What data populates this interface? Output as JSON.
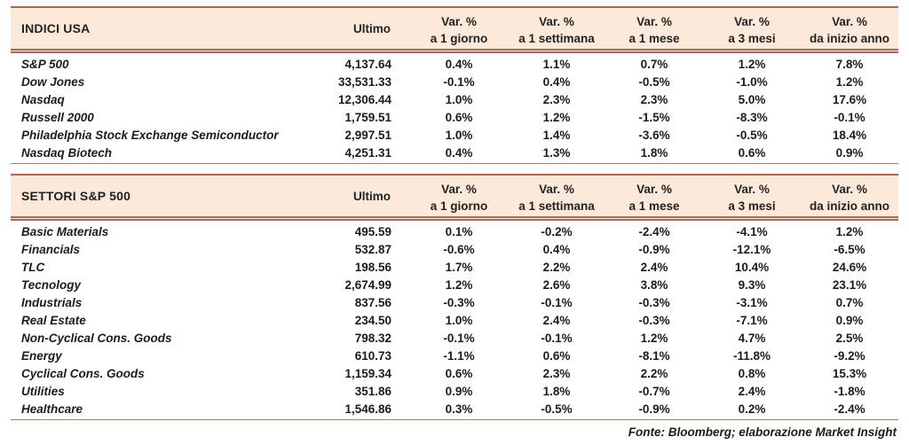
{
  "colors": {
    "header_bg": "#fce9da",
    "rule_dark": "#a9685c",
    "rule_light": "#c0705f",
    "text": "#1c1c1c"
  },
  "columns": {
    "ultimo": "Ultimo",
    "var_top": "Var. %",
    "var_subs": [
      "a 1 giorno",
      "a 1 settimana",
      "a 1 mese",
      "a 3 mesi",
      "da inizio anno"
    ]
  },
  "tables": [
    {
      "title": "INDICI USA",
      "rows": [
        {
          "name": "S&P 500",
          "ultimo": "4,137.64",
          "vars": [
            "0.4%",
            "1.1%",
            "0.7%",
            "1.2%",
            "7.8%"
          ]
        },
        {
          "name": "Dow Jones",
          "ultimo": "33,531.33",
          "vars": [
            "-0.1%",
            "0.4%",
            "-0.5%",
            "-1.0%",
            "1.2%"
          ]
        },
        {
          "name": "Nasdaq",
          "ultimo": "12,306.44",
          "vars": [
            "1.0%",
            "2.3%",
            "2.3%",
            "5.0%",
            "17.6%"
          ]
        },
        {
          "name": "Russell 2000",
          "ultimo": "1,759.51",
          "vars": [
            "0.6%",
            "1.2%",
            "-1.5%",
            "-8.3%",
            "-0.1%"
          ]
        },
        {
          "name": "Philadelphia Stock Exchange Semiconductor",
          "ultimo": "2,997.51",
          "vars": [
            "1.0%",
            "1.4%",
            "-3.6%",
            "-0.5%",
            "18.4%"
          ]
        },
        {
          "name": "Nasdaq Biotech",
          "ultimo": "4,251.31",
          "vars": [
            "0.4%",
            "1.3%",
            "1.8%",
            "0.6%",
            "0.9%"
          ]
        }
      ]
    },
    {
      "title": "SETTORI S&P 500",
      "rows": [
        {
          "name": "Basic Materials",
          "ultimo": "495.59",
          "vars": [
            "0.1%",
            "-0.2%",
            "-2.4%",
            "-4.1%",
            "1.2%"
          ]
        },
        {
          "name": "Financials",
          "ultimo": "532.87",
          "vars": [
            "-0.6%",
            "0.4%",
            "-0.9%",
            "-12.1%",
            "-6.5%"
          ]
        },
        {
          "name": "TLC",
          "ultimo": "198.56",
          "vars": [
            "1.7%",
            "2.2%",
            "2.4%",
            "10.4%",
            "24.6%"
          ]
        },
        {
          "name": "Tecnology",
          "ultimo": "2,674.99",
          "vars": [
            "1.2%",
            "2.6%",
            "3.8%",
            "9.3%",
            "23.1%"
          ]
        },
        {
          "name": "Industrials",
          "ultimo": "837.56",
          "vars": [
            "-0.3%",
            "-0.1%",
            "-0.3%",
            "-3.1%",
            "0.7%"
          ]
        },
        {
          "name": "Real Estate",
          "ultimo": "234.50",
          "vars": [
            "1.0%",
            "2.4%",
            "-0.3%",
            "-7.1%",
            "0.9%"
          ]
        },
        {
          "name": "Non-Cyclical Cons. Goods",
          "ultimo": "798.32",
          "vars": [
            "-0.1%",
            "-0.1%",
            "1.2%",
            "4.7%",
            "2.5%"
          ]
        },
        {
          "name": "Energy",
          "ultimo": "610.73",
          "vars": [
            "-1.1%",
            "0.6%",
            "-8.1%",
            "-11.8%",
            "-9.2%"
          ]
        },
        {
          "name": "Cyclical Cons. Goods",
          "ultimo": "1,159.34",
          "vars": [
            "0.6%",
            "2.3%",
            "2.2%",
            "0.8%",
            "15.3%"
          ]
        },
        {
          "name": "Utilities",
          "ultimo": "351.86",
          "vars": [
            "0.9%",
            "1.8%",
            "-0.7%",
            "2.4%",
            "-1.8%"
          ]
        },
        {
          "name": "Healthcare",
          "ultimo": "1,546.86",
          "vars": [
            "0.3%",
            "-0.5%",
            "-0.9%",
            "0.2%",
            "-2.4%"
          ]
        }
      ]
    }
  ],
  "footer": "Fonte: Bloomberg; elaborazione Market Insight"
}
